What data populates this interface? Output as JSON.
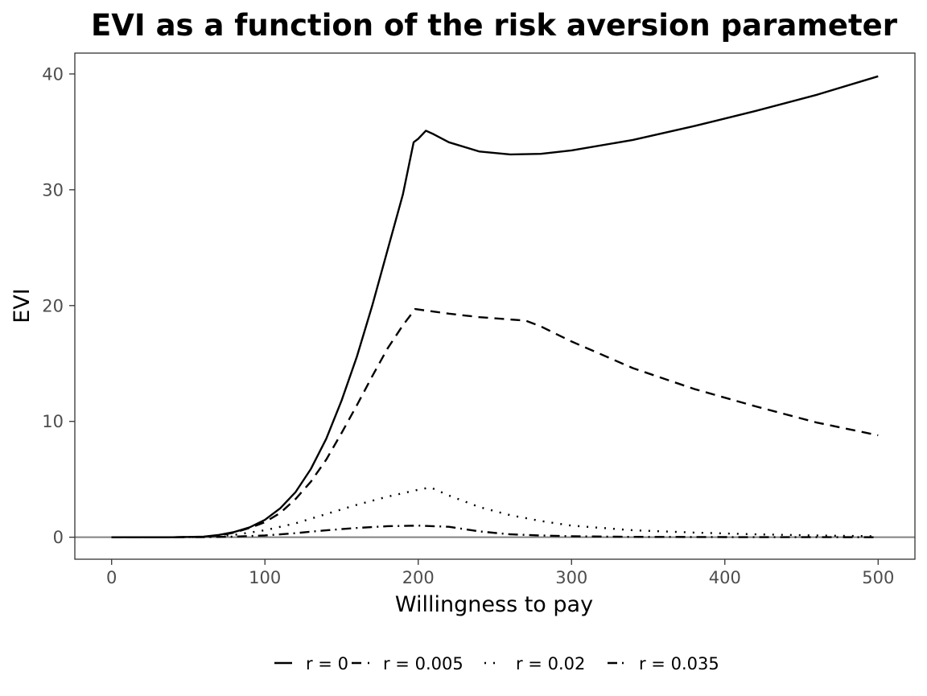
{
  "chart_data": {
    "type": "line",
    "title": "EVI as a function of the risk aversion parameter",
    "xlabel": "Willingness to pay",
    "ylabel": "EVI",
    "xlim": [
      -24,
      524
    ],
    "ylim": [
      -1.9,
      41.8
    ],
    "x_ticks": [
      0,
      100,
      200,
      300,
      400,
      500
    ],
    "y_ticks": [
      0,
      10,
      20,
      30,
      40
    ],
    "grid": false,
    "reference_line_y": 0,
    "legend_position": "bottom",
    "series": [
      {
        "name": "r = 0",
        "legend_label": "r = 0",
        "dash": "solid",
        "points": [
          [
            0,
            0
          ],
          [
            20,
            0
          ],
          [
            40,
            0
          ],
          [
            60,
            0.05
          ],
          [
            70,
            0.2
          ],
          [
            80,
            0.45
          ],
          [
            90,
            0.85
          ],
          [
            100,
            1.5
          ],
          [
            110,
            2.5
          ],
          [
            120,
            3.9
          ],
          [
            130,
            5.9
          ],
          [
            140,
            8.5
          ],
          [
            150,
            11.8
          ],
          [
            160,
            15.6
          ],
          [
            170,
            20
          ],
          [
            180,
            24.8
          ],
          [
            190,
            29.6
          ],
          [
            197,
            34.1
          ],
          [
            200,
            34.4
          ],
          [
            205,
            35.1
          ],
          [
            210,
            34.8
          ],
          [
            220,
            34.1
          ],
          [
            240,
            33.3
          ],
          [
            260,
            33.05
          ],
          [
            280,
            33.1
          ],
          [
            300,
            33.4
          ],
          [
            340,
            34.3
          ],
          [
            380,
            35.5
          ],
          [
            420,
            36.8
          ],
          [
            460,
            38.2
          ],
          [
            500,
            39.8
          ]
        ]
      },
      {
        "name": "r = 0.005",
        "legend_label": "r = 0.005",
        "dash": "12,8",
        "points": [
          [
            0,
            0
          ],
          [
            20,
            0
          ],
          [
            40,
            0
          ],
          [
            60,
            0.03
          ],
          [
            70,
            0.15
          ],
          [
            80,
            0.4
          ],
          [
            90,
            0.8
          ],
          [
            100,
            1.3
          ],
          [
            110,
            2.1
          ],
          [
            120,
            3.3
          ],
          [
            130,
            4.8
          ],
          [
            140,
            6.7
          ],
          [
            150,
            9
          ],
          [
            160,
            11.4
          ],
          [
            170,
            13.9
          ],
          [
            180,
            16.3
          ],
          [
            190,
            18.3
          ],
          [
            198,
            19.7
          ],
          [
            220,
            19.3
          ],
          [
            240,
            19
          ],
          [
            260,
            18.8
          ],
          [
            270,
            18.7
          ],
          [
            280,
            18.2
          ],
          [
            300,
            16.9
          ],
          [
            340,
            14.6
          ],
          [
            380,
            12.8
          ],
          [
            420,
            11.3
          ],
          [
            460,
            9.9
          ],
          [
            500,
            8.8
          ]
        ]
      },
      {
        "name": "r = 0.02",
        "legend_label": "r = 0.02",
        "dash": "2,9",
        "points": [
          [
            0,
            0
          ],
          [
            40,
            0
          ],
          [
            60,
            0.02
          ],
          [
            80,
            0.2
          ],
          [
            100,
            0.6
          ],
          [
            120,
            1.2
          ],
          [
            140,
            2
          ],
          [
            160,
            2.8
          ],
          [
            180,
            3.5
          ],
          [
            200,
            4.1
          ],
          [
            208,
            4.3
          ],
          [
            220,
            3.6
          ],
          [
            240,
            2.6
          ],
          [
            260,
            1.9
          ],
          [
            280,
            1.4
          ],
          [
            300,
            1
          ],
          [
            340,
            0.6
          ],
          [
            380,
            0.4
          ],
          [
            420,
            0.25
          ],
          [
            460,
            0.15
          ],
          [
            500,
            0.08
          ]
        ]
      },
      {
        "name": "r = 0.035",
        "legend_label": "r = 0.035",
        "dash": "12,6,2,6",
        "points": [
          [
            0,
            0
          ],
          [
            40,
            0
          ],
          [
            60,
            0.01
          ],
          [
            80,
            0.05
          ],
          [
            100,
            0.15
          ],
          [
            120,
            0.35
          ],
          [
            140,
            0.6
          ],
          [
            160,
            0.8
          ],
          [
            180,
            0.95
          ],
          [
            200,
            1
          ],
          [
            220,
            0.9
          ],
          [
            240,
            0.5
          ],
          [
            260,
            0.25
          ],
          [
            280,
            0.15
          ],
          [
            300,
            0.08
          ],
          [
            340,
            0.03
          ],
          [
            400,
            0.01
          ],
          [
            500,
            0
          ]
        ]
      }
    ]
  }
}
